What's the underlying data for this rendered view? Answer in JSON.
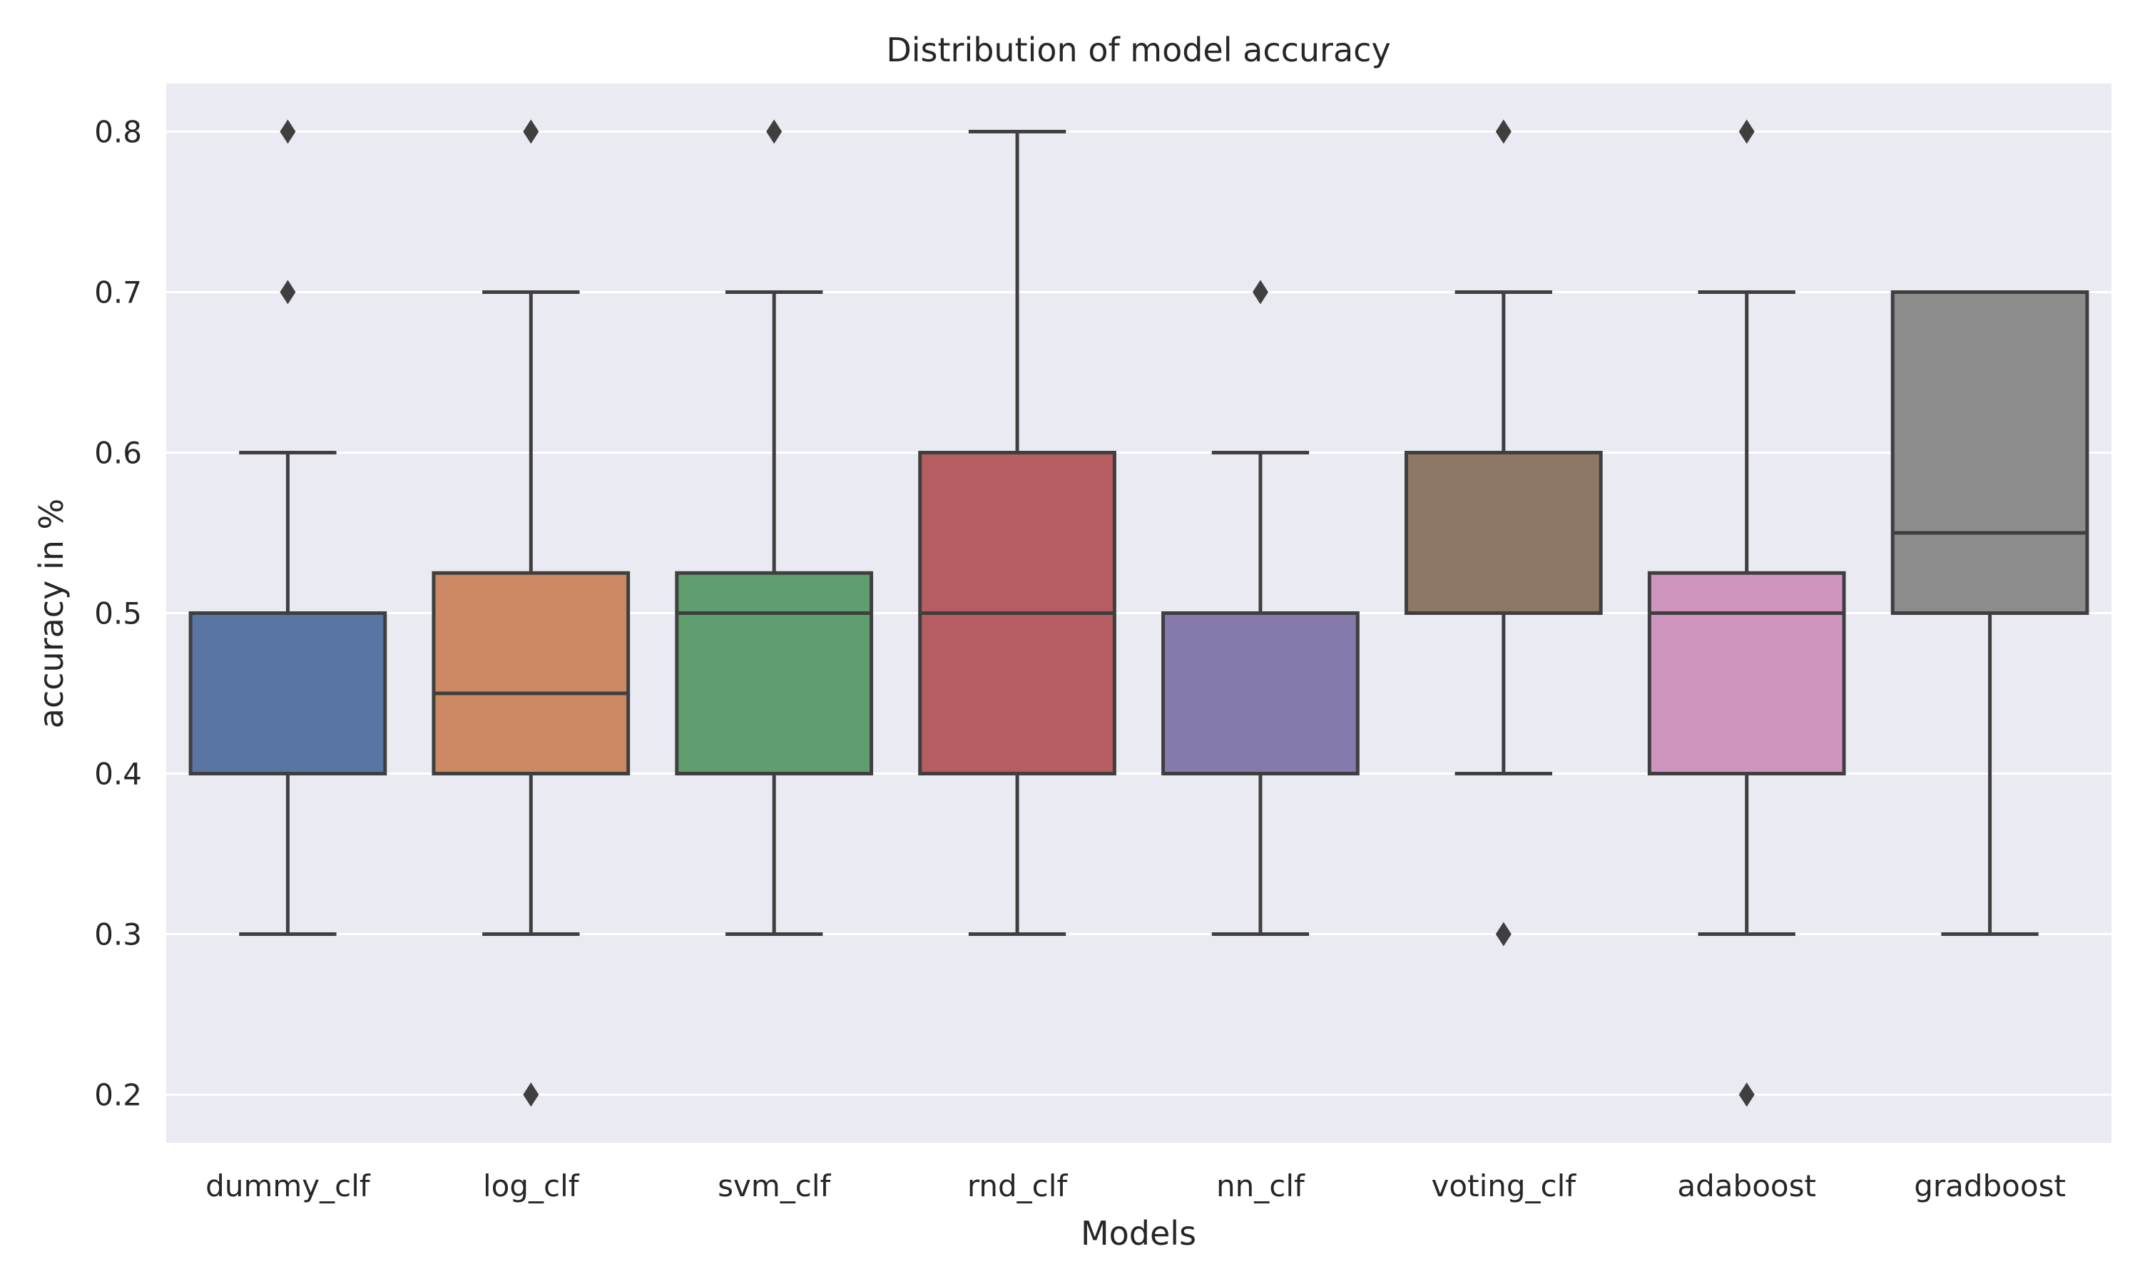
{
  "chart_data": {
    "type": "box",
    "title": "Distribution of model accuracy",
    "xlabel": "Models",
    "ylabel": "accuracy in %",
    "ylim": [
      0.17,
      0.83
    ],
    "yticks": [
      "0.2",
      "0.3",
      "0.4",
      "0.5",
      "0.6",
      "0.7",
      "0.8"
    ],
    "grid": true,
    "background": "#eaeaf2",
    "grid_color": "#ffffff",
    "line_color": "#3f3f3f",
    "categories": [
      "dummy_clf",
      "log_clf",
      "svm_clf",
      "rnd_clf",
      "nn_clf",
      "voting_clf",
      "adaboost",
      "gradboost"
    ],
    "boxes": [
      {
        "name": "dummy_clf",
        "color": "#5975a4",
        "whisker_low": 0.3,
        "q1": 0.4,
        "median": 0.4,
        "q3": 0.5,
        "whisker_high": 0.6,
        "outliers": [
          0.7,
          0.8
        ]
      },
      {
        "name": "log_clf",
        "color": "#cc8963",
        "whisker_low": 0.3,
        "q1": 0.4,
        "median": 0.45,
        "q3": 0.525,
        "whisker_high": 0.7,
        "outliers": [
          0.2,
          0.8
        ]
      },
      {
        "name": "svm_clf",
        "color": "#5f9e6e",
        "whisker_low": 0.3,
        "q1": 0.4,
        "median": 0.5,
        "q3": 0.525,
        "whisker_high": 0.7,
        "outliers": [
          0.8
        ]
      },
      {
        "name": "rnd_clf",
        "color": "#b55d60",
        "whisker_low": 0.3,
        "q1": 0.4,
        "median": 0.5,
        "q3": 0.6,
        "whisker_high": 0.8,
        "outliers": []
      },
      {
        "name": "nn_clf",
        "color": "#857aab",
        "whisker_low": 0.3,
        "q1": 0.4,
        "median": 0.4,
        "q3": 0.5,
        "whisker_high": 0.6,
        "outliers": [
          0.7
        ]
      },
      {
        "name": "voting_clf",
        "color": "#8d7866",
        "whisker_low": 0.4,
        "q1": 0.5,
        "median": 0.6,
        "q3": 0.6,
        "whisker_high": 0.7,
        "outliers": [
          0.3,
          0.8
        ]
      },
      {
        "name": "adaboost",
        "color": "#d095bf",
        "whisker_low": 0.3,
        "q1": 0.4,
        "median": 0.5,
        "q3": 0.525,
        "whisker_high": 0.7,
        "outliers": [
          0.2,
          0.8
        ]
      },
      {
        "name": "gradboost",
        "color": "#8c8c8c",
        "whisker_low": 0.3,
        "q1": 0.5,
        "median": 0.55,
        "q3": 0.7,
        "whisker_high": 0.7,
        "outliers": []
      }
    ]
  }
}
